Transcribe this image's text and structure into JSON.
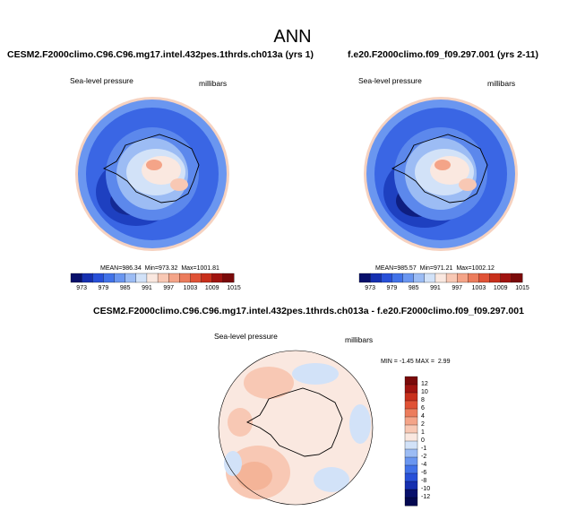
{
  "page": {
    "title": "ANN"
  },
  "panels": [
    {
      "title": "CESM2.F2000climo.C96.C96.mg17.intel.432pes.1thrds.ch013a (yrs 1)",
      "variable": "Sea-level pressure",
      "units": "millibars",
      "stats": {
        "mean": "986.34",
        "min": "973.32",
        "max": "1001.81"
      }
    },
    {
      "title": "f.e20.F2000climo.f09_f09.297.001 (yrs 2-11)",
      "variable": "Sea-level pressure",
      "units": "millibars",
      "stats": {
        "mean": "985.57",
        "min": "971.21",
        "max": "1002.12"
      }
    }
  ],
  "stats_labels": {
    "mean": "MEAN=",
    "min": "Min=",
    "max": "Max="
  },
  "diff": {
    "title": "CESM2.F2000climo.C96.C96.mg17.intel.432pes.1thrds.ch013a - f.e20.F2000climo.f09_f09.297.001",
    "variable": "Sea-level pressure",
    "units": "millibars",
    "minmax": {
      "min_label": "MIN =",
      "min": "-1.45",
      "max_label": "MAX =",
      "max": "2.99"
    }
  },
  "colorbar_abs": {
    "orientation": "horizontal",
    "tick_labels": [
      "973",
      "979",
      "985",
      "991",
      "997",
      "1003",
      "1009",
      "1015"
    ],
    "colors": [
      "#08106b",
      "#1630b0",
      "#2850d8",
      "#4272e8",
      "#6a96f0",
      "#9cbcf4",
      "#d2e2f8",
      "#fae8e0",
      "#f8c8b4",
      "#f4a488",
      "#ec7c5c",
      "#e05236",
      "#c8301c",
      "#a01410",
      "#7a0a0a"
    ]
  },
  "colorbar_diff": {
    "orientation": "vertical",
    "tick_labels": [
      "12",
      "10",
      "8",
      "6",
      "4",
      "2",
      "1",
      "0",
      "-1",
      "-2",
      "-4",
      "-6",
      "-8",
      "-10",
      "-12"
    ],
    "colors": [
      "#7a0a0a",
      "#a01410",
      "#c8301c",
      "#e05236",
      "#ec7c5c",
      "#f4a488",
      "#f8c8b4",
      "#fae8e0",
      "#d2e2f8",
      "#9cbcf4",
      "#6a96f0",
      "#4272e8",
      "#2850d8",
      "#1630b0",
      "#08106b",
      "#040850"
    ]
  }
}
